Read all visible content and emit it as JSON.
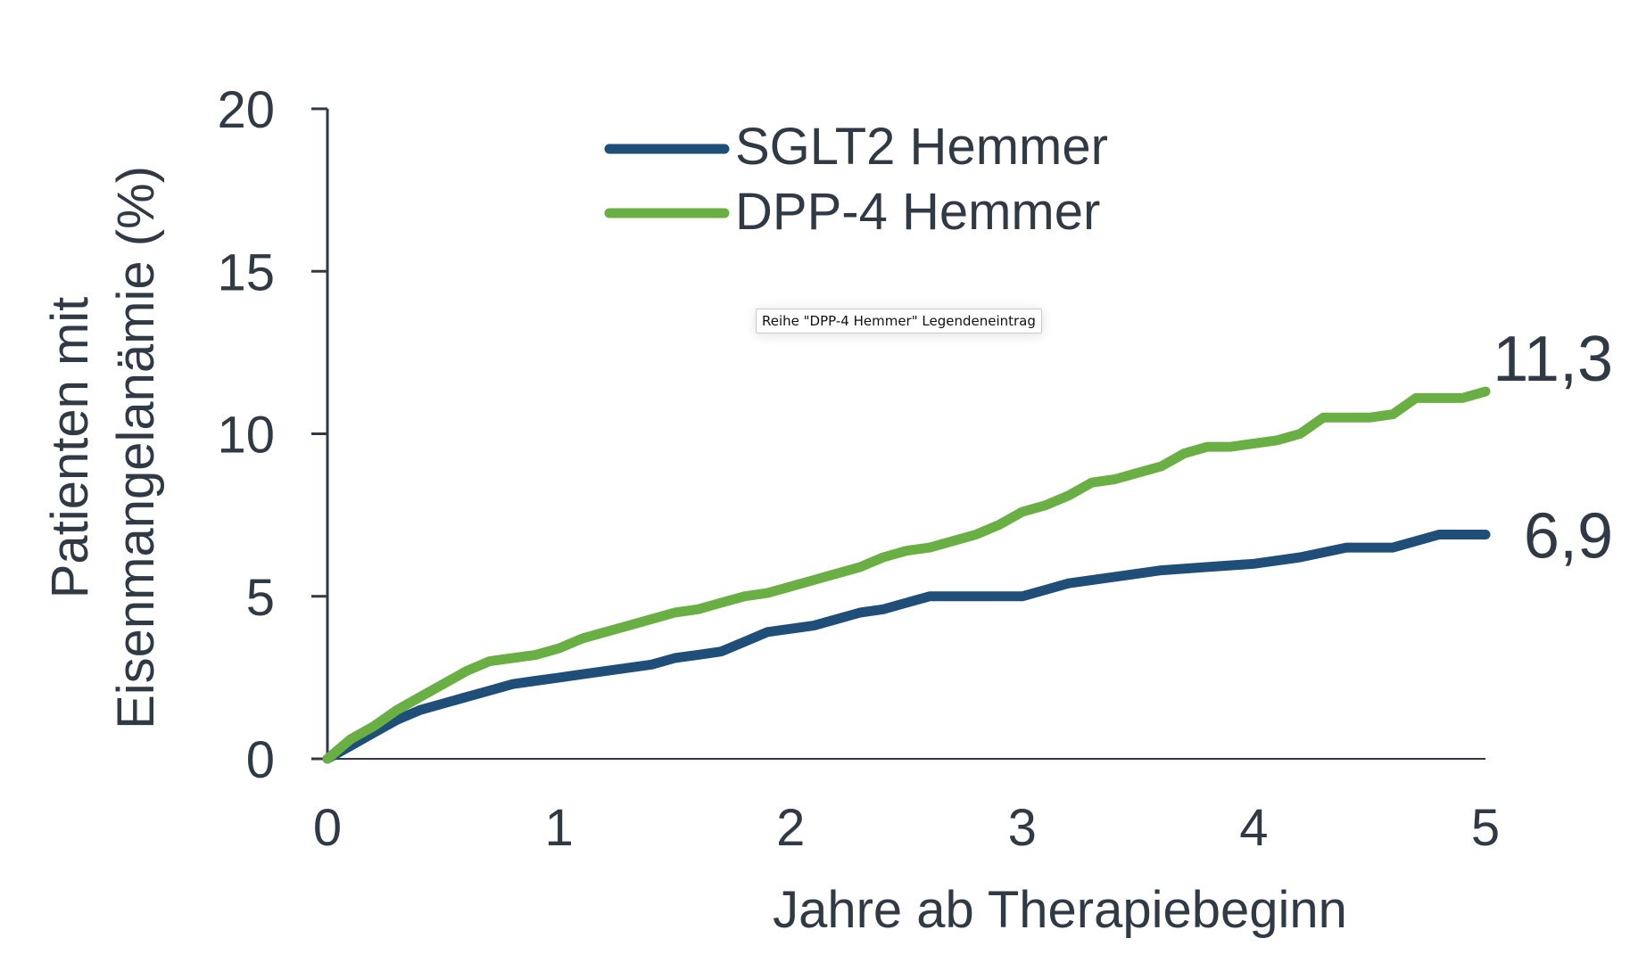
{
  "chart_data": {
    "type": "line",
    "xlabel": "Jahre ab Therapiebeginn",
    "ylabel_lines": [
      "Patienten mit",
      "Eisenmangelanämie (%)"
    ],
    "xlim": [
      0,
      5
    ],
    "ylim": [
      0,
      20
    ],
    "x_ticks": [
      "0",
      "1",
      "2",
      "3",
      "4",
      "5"
    ],
    "y_ticks": [
      "0",
      "5",
      "10",
      "15",
      "20"
    ],
    "legend_position": "top-center",
    "series": [
      {
        "name": "SGLT2 Hemmer",
        "color": "#1f4e79",
        "end_label": "6,9",
        "x": [
          0,
          0.1,
          0.2,
          0.3,
          0.4,
          0.5,
          0.6,
          0.7,
          0.8,
          0.9,
          1.0,
          1.1,
          1.2,
          1.3,
          1.4,
          1.5,
          1.6,
          1.7,
          1.8,
          1.9,
          2.0,
          2.1,
          2.2,
          2.3,
          2.4,
          2.5,
          2.6,
          2.8,
          3.0,
          3.1,
          3.2,
          3.4,
          3.6,
          3.8,
          4.0,
          4.2,
          4.4,
          4.6,
          4.8,
          5.0
        ],
        "y": [
          0,
          0.4,
          0.8,
          1.2,
          1.5,
          1.7,
          1.9,
          2.1,
          2.3,
          2.4,
          2.5,
          2.6,
          2.7,
          2.8,
          2.9,
          3.1,
          3.2,
          3.3,
          3.6,
          3.9,
          4.0,
          4.1,
          4.3,
          4.5,
          4.6,
          4.8,
          5.0,
          5.0,
          5.0,
          5.2,
          5.4,
          5.6,
          5.8,
          5.9,
          6.0,
          6.2,
          6.5,
          6.5,
          6.9,
          6.9
        ]
      },
      {
        "name": "DPP-4 Hemmer",
        "color": "#6aaf44",
        "end_label": "11,3",
        "x": [
          0,
          0.1,
          0.2,
          0.3,
          0.4,
          0.5,
          0.6,
          0.7,
          0.8,
          0.9,
          1.0,
          1.1,
          1.2,
          1.3,
          1.4,
          1.5,
          1.6,
          1.7,
          1.8,
          1.9,
          2.0,
          2.1,
          2.2,
          2.3,
          2.4,
          2.5,
          2.6,
          2.7,
          2.8,
          2.9,
          3.0,
          3.1,
          3.2,
          3.3,
          3.4,
          3.5,
          3.6,
          3.7,
          3.8,
          3.9,
          4.0,
          4.1,
          4.2,
          4.3,
          4.4,
          4.5,
          4.6,
          4.7,
          4.8,
          4.9,
          5.0
        ],
        "y": [
          0,
          0.6,
          1.0,
          1.5,
          1.9,
          2.3,
          2.7,
          3.0,
          3.1,
          3.2,
          3.4,
          3.7,
          3.9,
          4.1,
          4.3,
          4.5,
          4.6,
          4.8,
          5.0,
          5.1,
          5.3,
          5.5,
          5.7,
          5.9,
          6.2,
          6.4,
          6.5,
          6.7,
          6.9,
          7.2,
          7.6,
          7.8,
          8.1,
          8.5,
          8.6,
          8.8,
          9.0,
          9.4,
          9.6,
          9.6,
          9.7,
          9.8,
          10.0,
          10.5,
          10.5,
          10.5,
          10.6,
          11.1,
          11.1,
          11.1,
          11.3
        ]
      }
    ]
  },
  "tooltip": {
    "text": "Reihe \"DPP-4 Hemmer\" Legendeneintrag"
  },
  "colors": {
    "axis": "#2f3a44",
    "background": "#ffffff"
  }
}
